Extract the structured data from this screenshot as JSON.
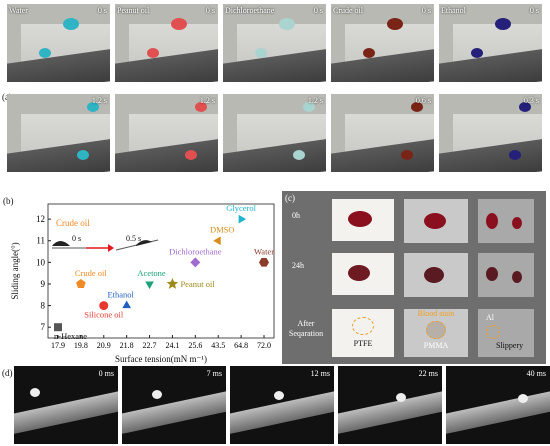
{
  "panel_a": {
    "label": "(a)",
    "top_row": [
      {
        "liquid": "Water",
        "time": "0 s",
        "drop_color": "#2fb4c4"
      },
      {
        "liquid": "Peanut oil",
        "time": "0 s",
        "drop_color": "#e05050"
      },
      {
        "liquid": "Dichloroethane",
        "time": "0 s",
        "drop_color": "#a9d4cf"
      },
      {
        "liquid": "Crude oil",
        "time": "0 s",
        "drop_color": "#7a2418"
      },
      {
        "liquid": "Ethanol",
        "time": "0 s",
        "drop_color": "#25207a"
      }
    ],
    "bottom_row": [
      {
        "time": "1.2 s",
        "drop_color": "#2fb4c4"
      },
      {
        "time": "1.2 s",
        "drop_color": "#e05050"
      },
      {
        "time": "1.2 s",
        "drop_color": "#a9d4cf"
      },
      {
        "time": "0.6 s",
        "drop_color": "#7a2418"
      },
      {
        "time": "0.3 s",
        "drop_color": "#25207a"
      }
    ]
  },
  "panel_b": {
    "label": "(b)",
    "inset_label": "Crude oil",
    "inset_t0": "0 s",
    "inset_t1": "0.5 s"
  },
  "chart_data": {
    "type": "scatter",
    "xlabel": "Surface tension(mN m⁻¹)",
    "ylabel": "Sliding angle(°)",
    "categories": [
      "17.9",
      "19.8",
      "20.9",
      "21.8",
      "22.7",
      "24.1",
      "25.6",
      "43.5",
      "64.8",
      "72.0"
    ],
    "ylim": [
      6.5,
      12.7
    ],
    "yticks": [
      7,
      8,
      9,
      10,
      11,
      12
    ],
    "points": [
      {
        "name": "n-Hexane",
        "x": "17.9",
        "y": 7.0,
        "marker": "square",
        "color": "#555555"
      },
      {
        "name": "Crude oil",
        "x": "19.8",
        "y": 9.0,
        "marker": "pentagon",
        "color": "#f08a24"
      },
      {
        "name": "Silicone oil",
        "x": "20.9",
        "y": 8.0,
        "marker": "circle",
        "color": "#e8392f"
      },
      {
        "name": "Ethanol",
        "x": "21.8",
        "y": 8.0,
        "marker": "triangle-up",
        "color": "#1f5fbf"
      },
      {
        "name": "Acetone",
        "x": "22.7",
        "y": 9.0,
        "marker": "triangle-down",
        "color": "#1aa37a"
      },
      {
        "name": "Peanut oil",
        "x": "24.1",
        "y": 9.0,
        "marker": "star",
        "color": "#9b8a1a"
      },
      {
        "name": "Dichloroethane",
        "x": "25.6",
        "y": 10.0,
        "marker": "diamond",
        "color": "#a06ccf"
      },
      {
        "name": "DMSO",
        "x": "43.5",
        "y": 11.0,
        "marker": "triangle-left",
        "color": "#d98c1a"
      },
      {
        "name": "Glycerol",
        "x": "64.8",
        "y": 12.0,
        "marker": "triangle-right",
        "color": "#22b5c9"
      },
      {
        "name": "Water",
        "x": "72.0",
        "y": 10.0,
        "marker": "hexagon",
        "color": "#8b3b2b"
      }
    ]
  },
  "panel_c": {
    "label": "(c)",
    "rows": [
      "0h",
      "24h",
      "After Seqaration"
    ],
    "materials": [
      "PTFE",
      "PMMA",
      "Al"
    ],
    "annotations": {
      "blood_stain": "Blood stain",
      "slippery": "Slippery"
    }
  },
  "panel_d": {
    "label": "(d)",
    "frames": [
      "0 ms",
      "7 ms",
      "12 ms",
      "22 ms",
      "40 ms"
    ]
  }
}
